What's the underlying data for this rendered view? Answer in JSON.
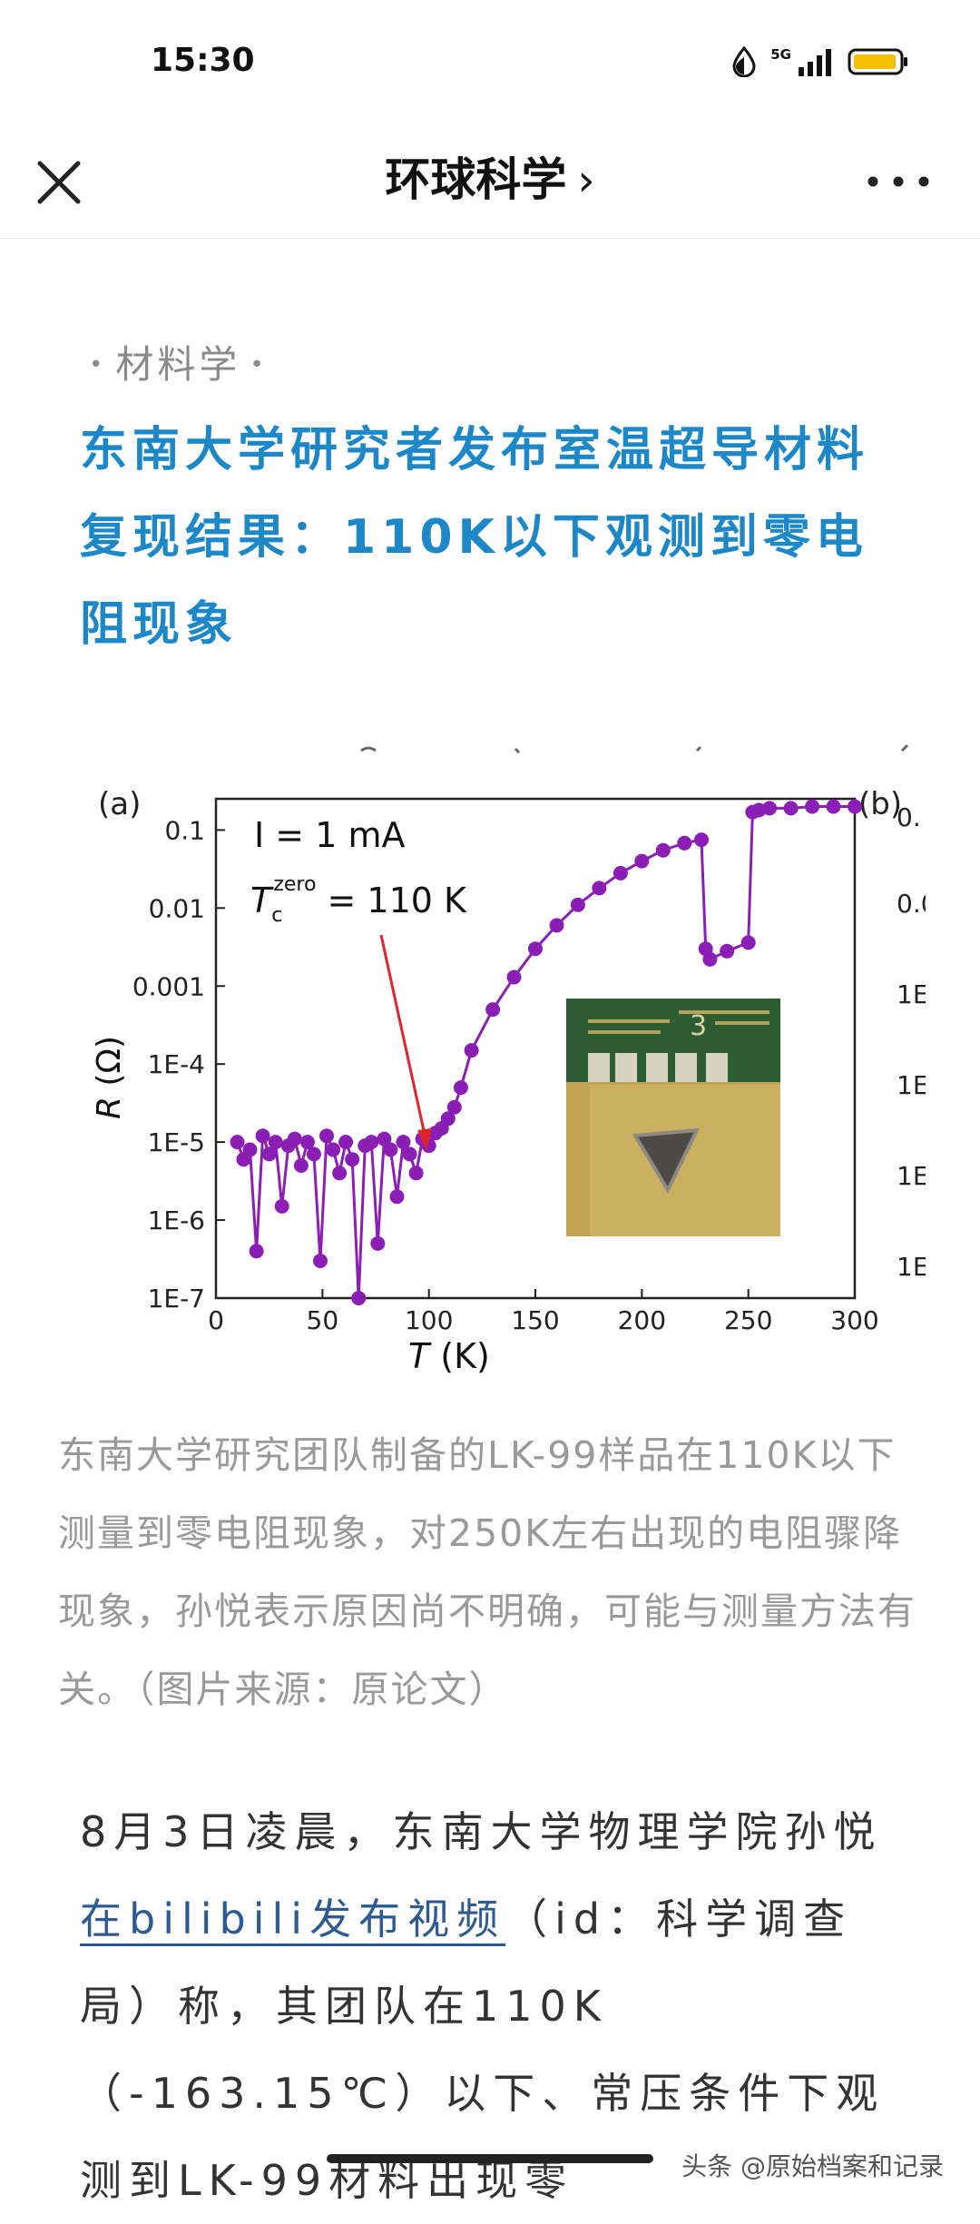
{
  "status_bar": {
    "time": "15:30",
    "network": "5G"
  },
  "nav": {
    "title": "环球科学",
    "chevron": "›"
  },
  "article": {
    "category": "材料学",
    "title": "东南大学研究者发布室温超导材料复现结果：110K以下观测到零电阻现象",
    "caption": "东南大学研究团队制备的LK-99样品在110K以下测量到零电阻现象，对250K左右出现的电阻骤降现象，孙悦表示原因尚不明确，可能与测量方法有关。（图片来源：原论文）",
    "paragraph": {
      "before_link": "8月3日凌晨，东南大学物理学院孙悦",
      "link": "在bilibili发布视频",
      "after_link": "（id：科学调查局）称，其团队在110K（-163.15℃）以下、常压条件下观测到LK-99材料出现零"
    }
  },
  "watermark": "头条 @原始档案和记录",
  "figure": {
    "panel_a_label": "(a)",
    "panel_b_label": "(b)",
    "annotation_current": "I = 1 mA",
    "annotation_tc_prefix": "T",
    "annotation_tc_sub": "c",
    "annotation_tc_sup": "zero",
    "annotation_tc_value": " = 110 K",
    "right_panel_ticks": [
      "0.",
      "0.0",
      "1E",
      "1E",
      "1E",
      "1E"
    ]
  },
  "chart_data": {
    "type": "scatter",
    "title": "",
    "xlabel": "T (K)",
    "ylabel": "R (Ω)",
    "xlim": [
      0,
      300
    ],
    "ylim_log10": [
      -7,
      -0.6
    ],
    "y_scale": "log",
    "x_ticks": [
      0,
      50,
      100,
      150,
      200,
      250,
      300
    ],
    "y_ticks": [
      {
        "value": 0.1,
        "label": "0.1"
      },
      {
        "value": 0.01,
        "label": "0.01"
      },
      {
        "value": 0.001,
        "label": "0.001"
      },
      {
        "value": 0.0001,
        "label": "1E-4"
      },
      {
        "value": 1e-05,
        "label": "1E-5"
      },
      {
        "value": 1e-06,
        "label": "1E-6"
      },
      {
        "value": 1e-07,
        "label": "1E-7"
      }
    ],
    "series": [
      {
        "color": "#8b1fb5",
        "x": [
          10,
          13,
          16,
          19,
          22,
          25,
          28,
          31,
          34,
          37,
          40,
          43,
          46,
          49,
          52,
          55,
          58,
          61,
          64,
          67,
          70,
          73,
          76,
          79,
          82,
          85,
          88,
          91,
          94,
          97,
          100,
          103,
          106,
          109,
          112,
          115,
          120,
          130,
          140,
          150,
          160,
          170,
          180,
          190,
          200,
          210,
          220,
          228,
          230,
          232,
          240,
          250,
          252,
          255,
          260,
          270,
          280,
          290,
          300
        ],
        "y": [
          1e-05,
          6e-06,
          8e-06,
          4e-07,
          1.2e-05,
          7e-06,
          1e-05,
          1.5e-06,
          9e-06,
          1.1e-05,
          5e-06,
          1e-05,
          7e-06,
          3e-07,
          1.2e-05,
          8e-06,
          4e-06,
          1e-05,
          6e-06,
          1e-07,
          9e-06,
          1e-05,
          5e-07,
          1.1e-05,
          8e-06,
          2e-06,
          1e-05,
          7e-06,
          4e-06,
          1.1e-05,
          9e-06,
          1.3e-05,
          1.5e-05,
          2e-05,
          2.8e-05,
          5e-05,
          0.00015,
          0.0005,
          0.0013,
          0.003,
          0.006,
          0.011,
          0.018,
          0.028,
          0.04,
          0.055,
          0.068,
          0.075,
          0.003,
          0.0022,
          0.0028,
          0.0036,
          0.17,
          0.18,
          0.19,
          0.19,
          0.2,
          0.2,
          0.2
        ]
      }
    ],
    "annotations": [
      "I = 1 mA",
      "Tc zero = 110 K"
    ],
    "grid": false,
    "legend": "none"
  },
  "colors": {
    "title": "#1d88c7",
    "link": "#2e5a94",
    "caption": "#999999",
    "series": "#8b1fb5"
  }
}
